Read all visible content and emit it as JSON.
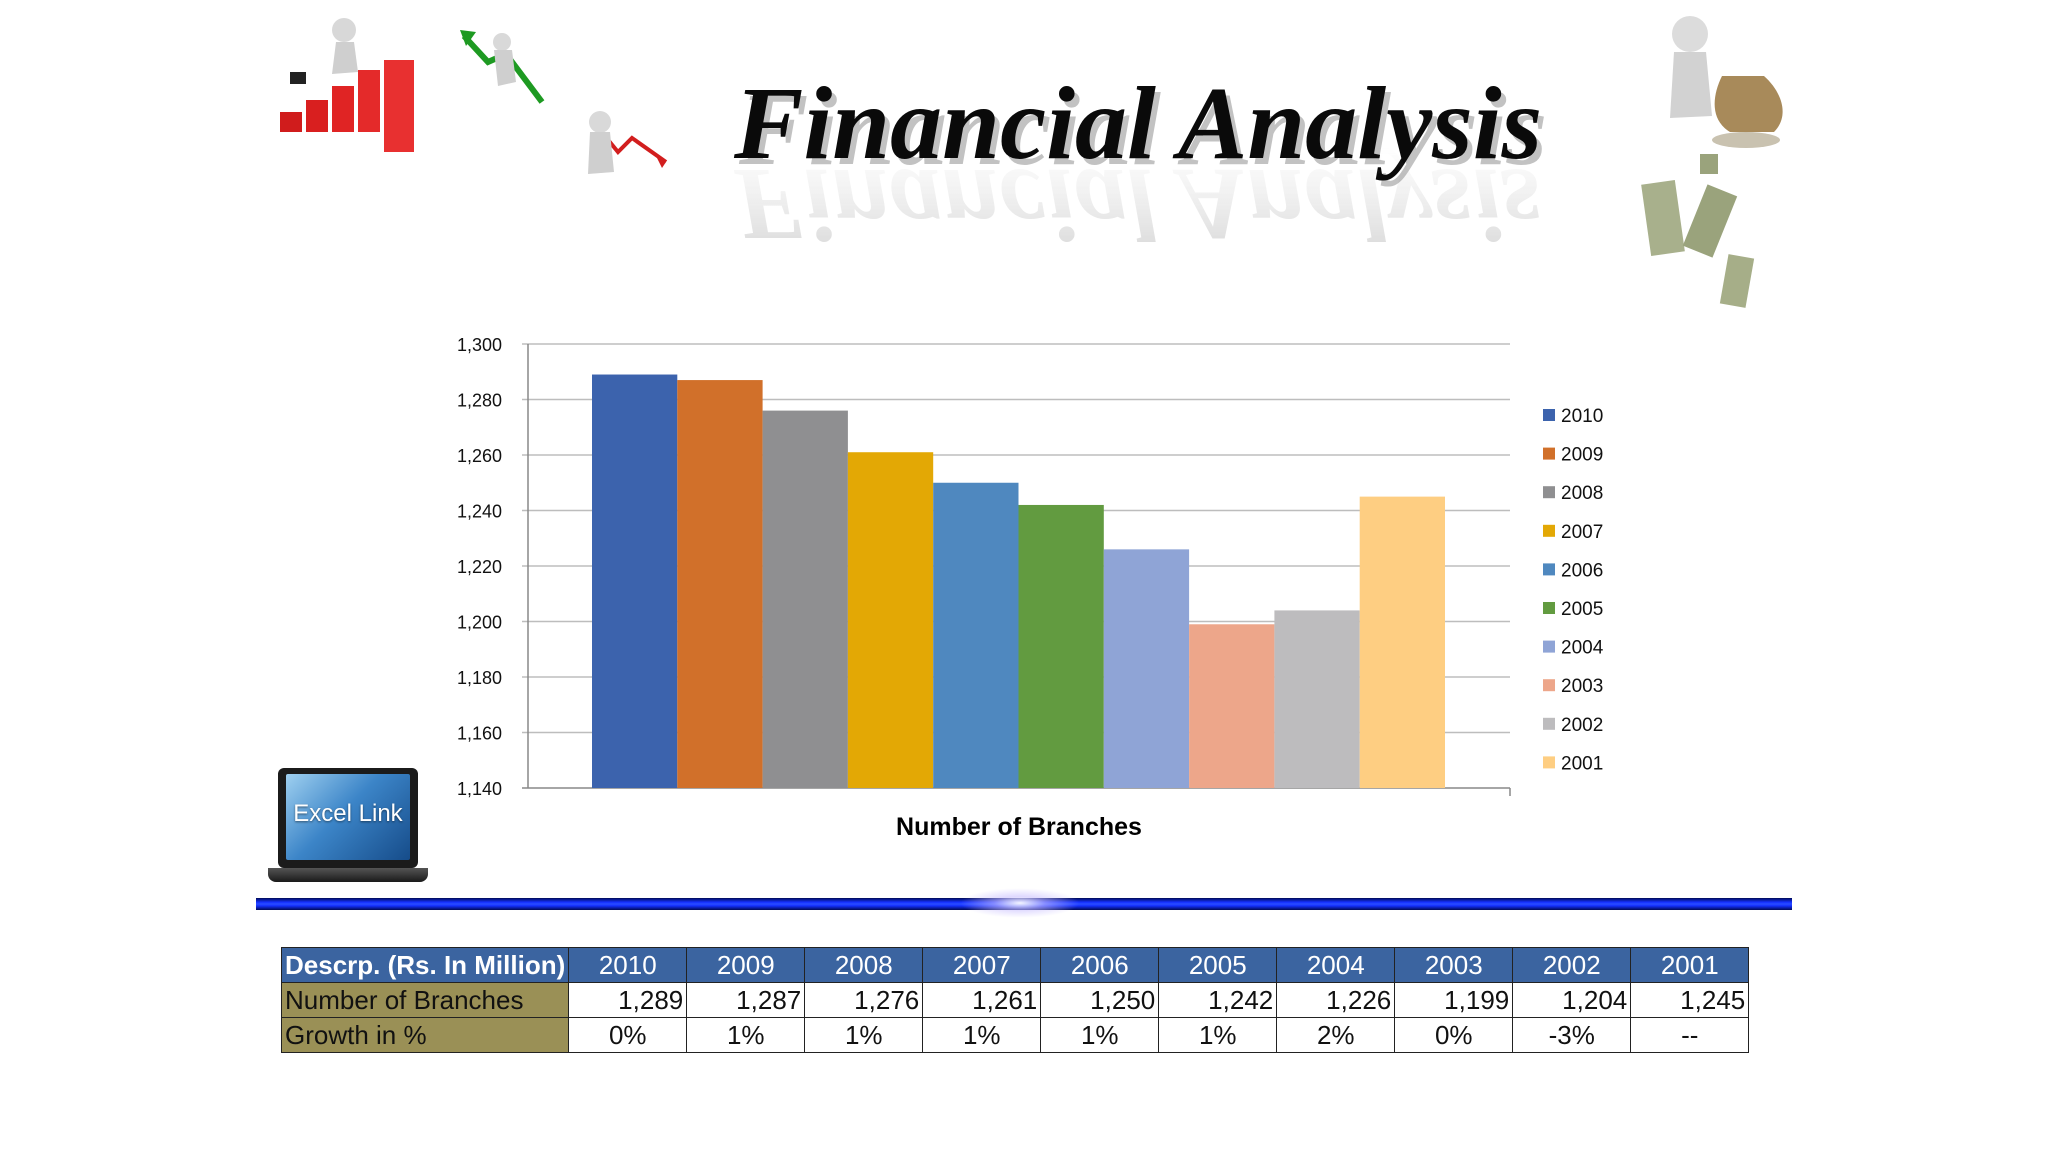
{
  "slide": {
    "title": "Financial Analysis",
    "excel_link_label": "Excel Link"
  },
  "chart_data": {
    "type": "bar",
    "title": "",
    "xlabel": "Number of Branches",
    "ylabel": "",
    "ylim": [
      1140,
      1300
    ],
    "yticks": [
      1140,
      1160,
      1180,
      1200,
      1220,
      1240,
      1260,
      1280,
      1300
    ],
    "ytick_labels": [
      "1,140",
      "1,160",
      "1,180",
      "1,200",
      "1,220",
      "1,240",
      "1,260",
      "1,280",
      "1,300"
    ],
    "grid": true,
    "legend_position": "right",
    "series": [
      {
        "name": "2010",
        "value": 1289,
        "color": "#3c63ad"
      },
      {
        "name": "2009",
        "value": 1287,
        "color": "#d1702a"
      },
      {
        "name": "2008",
        "value": 1276,
        "color": "#8f8f91"
      },
      {
        "name": "2007",
        "value": 1261,
        "color": "#e3a805"
      },
      {
        "name": "2006",
        "value": 1250,
        "color": "#4f88bf"
      },
      {
        "name": "2005",
        "value": 1242,
        "color": "#629b40"
      },
      {
        "name": "2004",
        "value": 1226,
        "color": "#8fa4d6"
      },
      {
        "name": "2003",
        "value": 1199,
        "color": "#eda68a"
      },
      {
        "name": "2002",
        "value": 1204,
        "color": "#bdbcbe"
      },
      {
        "name": "2001",
        "value": 1245,
        "color": "#fece82"
      }
    ]
  },
  "table": {
    "header_label": "Descrp. (Rs. In Million)",
    "years": [
      "2010",
      "2009",
      "2008",
      "2007",
      "2006",
      "2005",
      "2004",
      "2003",
      "2002",
      "2001"
    ],
    "rows": [
      {
        "label": "Number of Branches",
        "values": [
          "1,289",
          "1,287",
          "1,276",
          "1,261",
          "1,250",
          "1,242",
          "1,226",
          "1,199",
          "1,204",
          "1,245"
        ]
      },
      {
        "label": "Growth in %",
        "values": [
          "0%",
          "1%",
          "1%",
          "1%",
          "1%",
          "1%",
          "2%",
          "0%",
          "-3%",
          "--"
        ]
      }
    ]
  },
  "colors": {
    "table_header_bg": "#3b64a0",
    "row_label_bg": "#9a9056",
    "divider": "#1430ff"
  },
  "decorations": [
    "figure-climbing-bar-chart-icon",
    "figure-rising-arrow-icon",
    "figure-falling-arrow-icon",
    "figure-money-bag-icon",
    "falling-banknotes-icon",
    "laptop-icon"
  ]
}
